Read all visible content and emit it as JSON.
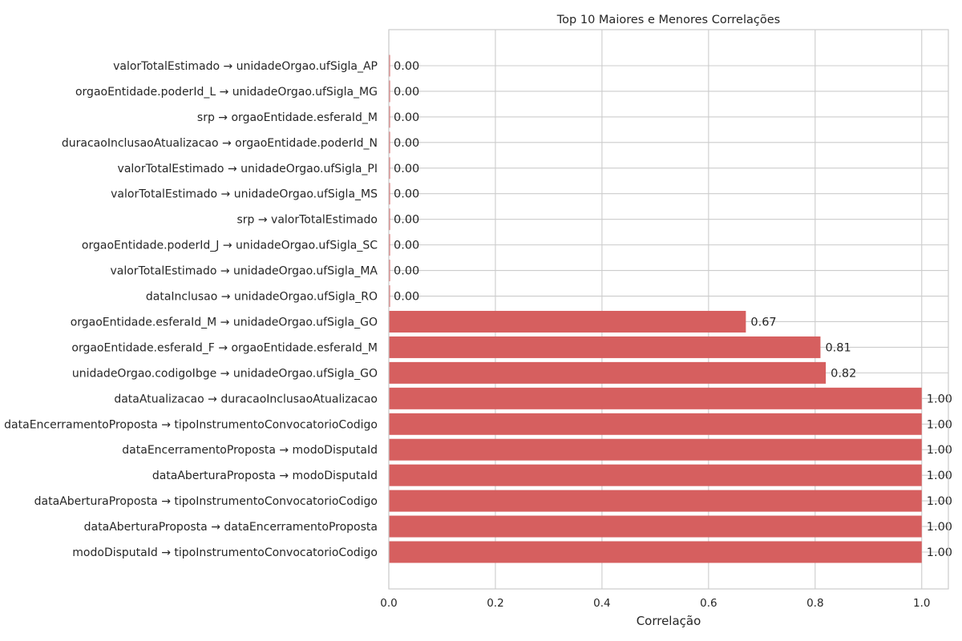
{
  "chart_data": {
    "type": "bar",
    "orientation": "horizontal",
    "title": "Top 10 Maiores e Menores Correlações",
    "xlabel": "Correlação",
    "ylabel": "",
    "xlim": [
      0,
      1.05
    ],
    "x_ticks": [
      "0.0",
      "0.2",
      "0.4",
      "0.6",
      "0.8",
      "1.0"
    ],
    "x_tick_values": [
      0,
      0.2,
      0.4,
      0.6,
      0.8,
      1.0
    ],
    "grid": true,
    "bar_color": "#d65f5f",
    "categories": [
      "valorTotalEstimado → unidadeOrgao.ufSigla_AP",
      "orgaoEntidade.poderId_L → unidadeOrgao.ufSigla_MG",
      "srp → orgaoEntidade.esferaId_M",
      "duracaoInclusaoAtualizacao → orgaoEntidade.poderId_N",
      "valorTotalEstimado → unidadeOrgao.ufSigla_PI",
      "valorTotalEstimado → unidadeOrgao.ufSigla_MS",
      "srp → valorTotalEstimado",
      "orgaoEntidade.poderId_J → unidadeOrgao.ufSigla_SC",
      "valorTotalEstimado → unidadeOrgao.ufSigla_MA",
      "dataInclusao → unidadeOrgao.ufSigla_RO",
      "orgaoEntidade.esferaId_M → unidadeOrgao.ufSigla_GO",
      "orgaoEntidade.esferaId_F → orgaoEntidade.esferaId_M",
      "unidadeOrgao.codigoIbge → unidadeOrgao.ufSigla_GO",
      "dataAtualizacao → duracaoInclusaoAtualizacao",
      "dataEncerramentoProposta → tipoInstrumentoConvocatorioCodigo",
      "dataEncerramentoProposta → modoDisputaId",
      "dataAberturaProposta → modoDisputaId",
      "dataAberturaProposta → tipoInstrumentoConvocatorioCodigo",
      "dataAberturaProposta → dataEncerramentoProposta",
      "modoDisputaId → tipoInstrumentoConvocatorioCodigo"
    ],
    "values": [
      0.0,
      0.0,
      0.0,
      0.0,
      0.0,
      0.0,
      0.0,
      0.0,
      0.0,
      0.0,
      0.67,
      0.81,
      0.82,
      1.0,
      1.0,
      1.0,
      1.0,
      1.0,
      1.0,
      1.0
    ],
    "value_labels": [
      "0.00",
      "0.00",
      "0.00",
      "0.00",
      "0.00",
      "0.00",
      "0.00",
      "0.00",
      "0.00",
      "0.00",
      "0.67",
      "0.81",
      "0.82",
      "1.00",
      "1.00",
      "1.00",
      "1.00",
      "1.00",
      "1.00",
      "1.00"
    ]
  }
}
